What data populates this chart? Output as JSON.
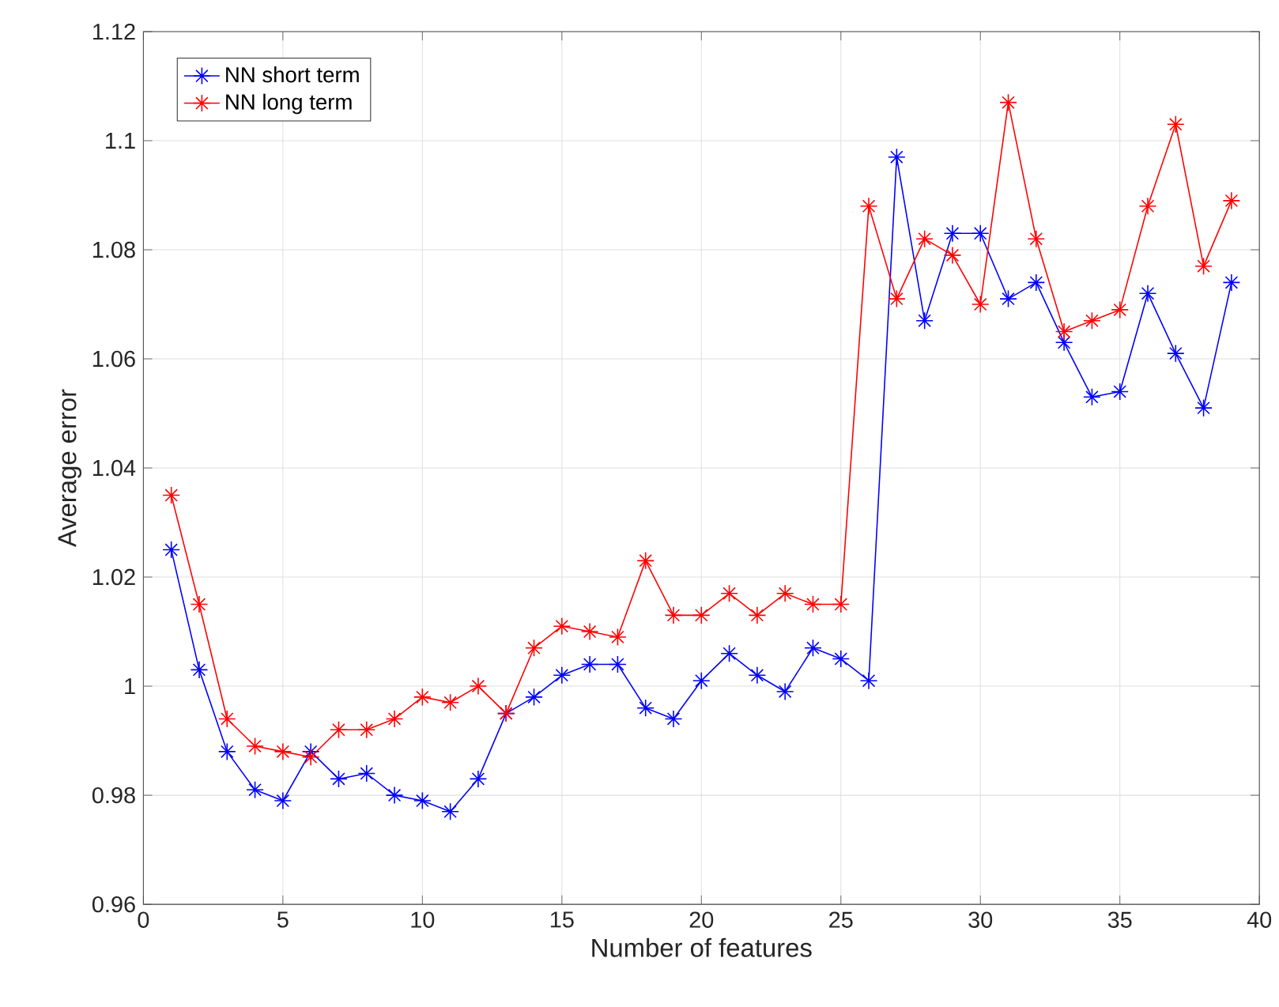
{
  "chart_data": {
    "type": "line",
    "xlabel": "Number of features",
    "ylabel": "Average error",
    "x": [
      1,
      2,
      3,
      4,
      5,
      6,
      7,
      8,
      9,
      10,
      11,
      12,
      13,
      14,
      15,
      16,
      17,
      18,
      19,
      20,
      21,
      22,
      23,
      24,
      25,
      26,
      27,
      28,
      29,
      30,
      31,
      32,
      33,
      34,
      35,
      36,
      37,
      38,
      39
    ],
    "series": [
      {
        "name": "NN short term",
        "color": "#0000ff",
        "values": [
          1.025,
          1.003,
          0.988,
          0.981,
          0.979,
          0.988,
          0.983,
          0.984,
          0.98,
          0.979,
          0.977,
          0.983,
          0.995,
          0.998,
          1.002,
          1.004,
          1.004,
          0.996,
          0.994,
          1.001,
          1.006,
          1.002,
          0.999,
          1.007,
          1.005,
          1.001,
          1.097,
          1.067,
          1.083,
          1.083,
          1.071,
          1.074,
          1.063,
          1.053,
          1.054,
          1.072,
          1.061,
          1.051,
          1.074
        ]
      },
      {
        "name": "NN long term",
        "color": "#ff0000",
        "values": [
          1.035,
          1.015,
          0.994,
          0.989,
          0.988,
          0.987,
          0.992,
          0.992,
          0.994,
          0.998,
          0.997,
          1.0,
          0.995,
          1.007,
          1.011,
          1.01,
          1.009,
          1.023,
          1.013,
          1.013,
          1.017,
          1.013,
          1.017,
          1.015,
          1.015,
          1.088,
          1.071,
          1.082,
          1.079,
          1.07,
          1.107,
          1.082,
          1.065,
          1.067,
          1.069,
          1.088,
          1.103,
          1.077,
          1.089
        ]
      }
    ],
    "xlim": [
      0,
      40
    ],
    "xticks": [
      0,
      5,
      10,
      15,
      20,
      25,
      30,
      35,
      40
    ],
    "ylim": [
      0.96,
      1.12
    ],
    "yticks": [
      0.96,
      0.98,
      1,
      1.02,
      1.04,
      1.06,
      1.08,
      1.1,
      1.12
    ],
    "grid": true,
    "legend": "top left",
    "marker": "cross",
    "line_style": "solid"
  }
}
